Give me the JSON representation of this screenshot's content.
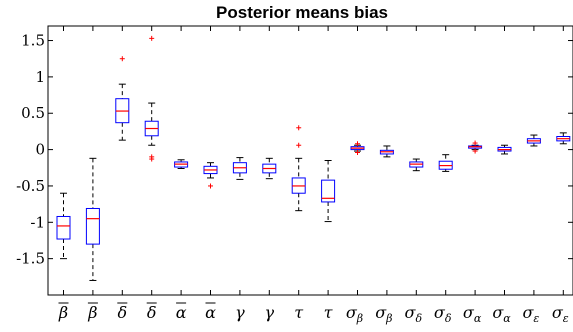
{
  "chart_data": {
    "type": "box",
    "title": "Posterior means bias",
    "ylim": [
      -2.0,
      1.7
    ],
    "y_ticks": [
      -1.5,
      -1,
      -0.5,
      0,
      0.5,
      1,
      1.5
    ],
    "y_tick_labels": [
      "-1.5",
      "-1",
      "-0.5",
      "0",
      "0.5",
      "1",
      "1.5"
    ],
    "grid": false,
    "colors": {
      "box": "#0000ff",
      "median": "#ff0000",
      "outlier": "#ff0000",
      "whisker": "#000000",
      "axis": "#000000"
    },
    "categories": [
      {
        "base": "β",
        "decor": "bar",
        "sub": ""
      },
      {
        "base": "β",
        "decor": "bar",
        "sub": ""
      },
      {
        "base": "δ",
        "decor": "bar",
        "sub": ""
      },
      {
        "base": "δ",
        "decor": "bar",
        "sub": ""
      },
      {
        "base": "α",
        "decor": "bar",
        "sub": ""
      },
      {
        "base": "α",
        "decor": "bar",
        "sub": ""
      },
      {
        "base": "γ",
        "decor": "",
        "sub": ""
      },
      {
        "base": "γ",
        "decor": "",
        "sub": ""
      },
      {
        "base": "τ",
        "decor": "",
        "sub": ""
      },
      {
        "base": "τ",
        "decor": "",
        "sub": ""
      },
      {
        "base": "σ",
        "decor": "",
        "sub": "β"
      },
      {
        "base": "σ",
        "decor": "",
        "sub": "β"
      },
      {
        "base": "σ",
        "decor": "",
        "sub": "δ"
      },
      {
        "base": "σ",
        "decor": "",
        "sub": "δ"
      },
      {
        "base": "σ",
        "decor": "",
        "sub": "α"
      },
      {
        "base": "σ",
        "decor": "",
        "sub": "α"
      },
      {
        "base": "σ",
        "decor": "",
        "sub": "ε"
      },
      {
        "base": "σ",
        "decor": "",
        "sub": "ε"
      }
    ],
    "boxes": [
      {
        "whisker_low": -1.5,
        "q1": -1.23,
        "median": -1.05,
        "q3": -0.92,
        "whisker_high": -0.6,
        "outliers": []
      },
      {
        "whisker_low": -1.8,
        "q1": -1.3,
        "median": -0.95,
        "q3": -0.81,
        "whisker_high": -0.12,
        "outliers": []
      },
      {
        "whisker_low": 0.13,
        "q1": 0.37,
        "median": 0.53,
        "q3": 0.7,
        "whisker_high": 0.9,
        "outliers": [
          1.25
        ]
      },
      {
        "whisker_low": 0.06,
        "q1": 0.19,
        "median": 0.29,
        "q3": 0.39,
        "whisker_high": 0.64,
        "outliers": [
          1.53,
          -0.1,
          -0.13
        ]
      },
      {
        "whisker_low": -0.26,
        "q1": -0.24,
        "median": -0.2,
        "q3": -0.17,
        "whisker_high": -0.14,
        "outliers": []
      },
      {
        "whisker_low": -0.39,
        "q1": -0.33,
        "median": -0.28,
        "q3": -0.23,
        "whisker_high": -0.18,
        "outliers": [
          -0.5
        ]
      },
      {
        "whisker_low": -0.41,
        "q1": -0.32,
        "median": -0.25,
        "q3": -0.18,
        "whisker_high": -0.11,
        "outliers": []
      },
      {
        "whisker_low": -0.4,
        "q1": -0.32,
        "median": -0.26,
        "q3": -0.2,
        "whisker_high": -0.12,
        "outliers": []
      },
      {
        "whisker_low": -0.84,
        "q1": -0.6,
        "median": -0.5,
        "q3": -0.39,
        "whisker_high": -0.12,
        "outliers": [
          0.3,
          0.06
        ]
      },
      {
        "whisker_low": -0.99,
        "q1": -0.72,
        "median": -0.67,
        "q3": -0.42,
        "whisker_high": -0.15,
        "outliers": []
      },
      {
        "whisker_low": -0.02,
        "q1": 0.0,
        "median": 0.02,
        "q3": 0.04,
        "whisker_high": 0.06,
        "outliers": [
          0.08,
          -0.04
        ]
      },
      {
        "whisker_low": -0.1,
        "q1": -0.06,
        "median": -0.03,
        "q3": -0.01,
        "whisker_high": 0.05,
        "outliers": []
      },
      {
        "whisker_low": -0.29,
        "q1": -0.24,
        "median": -0.2,
        "q3": -0.17,
        "whisker_high": -0.13,
        "outliers": []
      },
      {
        "whisker_low": -0.3,
        "q1": -0.27,
        "median": -0.22,
        "q3": -0.16,
        "whisker_high": -0.07,
        "outliers": []
      },
      {
        "whisker_low": 0.0,
        "q1": 0.02,
        "median": 0.04,
        "q3": 0.05,
        "whisker_high": 0.06,
        "outliers": [
          0.09,
          -0.02
        ]
      },
      {
        "whisker_low": -0.06,
        "q1": -0.02,
        "median": 0.0,
        "q3": 0.03,
        "whisker_high": 0.06,
        "outliers": []
      },
      {
        "whisker_low": 0.05,
        "q1": 0.09,
        "median": 0.12,
        "q3": 0.15,
        "whisker_high": 0.2,
        "outliers": []
      },
      {
        "whisker_low": 0.08,
        "q1": 0.12,
        "median": 0.15,
        "q3": 0.18,
        "whisker_high": 0.23,
        "outliers": []
      }
    ]
  }
}
